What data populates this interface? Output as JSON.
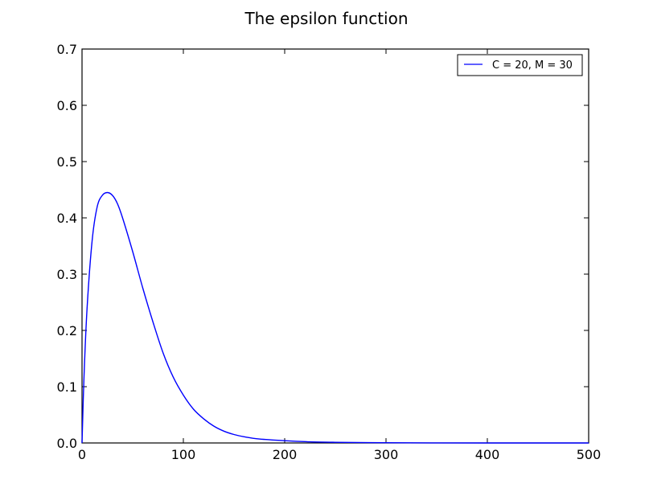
{
  "chart_data": {
    "type": "line",
    "title": "The epsilon function",
    "xlabel": "",
    "ylabel": "",
    "xlim": [
      0,
      500
    ],
    "ylim": [
      0,
      0.7
    ],
    "x_ticks": [
      0,
      100,
      200,
      300,
      400,
      500
    ],
    "y_ticks": [
      0.0,
      0.1,
      0.2,
      0.3,
      0.4,
      0.5,
      0.6,
      0.7
    ],
    "x_tick_labels": [
      "0",
      "100",
      "200",
      "300",
      "400",
      "500"
    ],
    "y_tick_labels": [
      "0.0",
      "0.1",
      "0.2",
      "0.3",
      "0.4",
      "0.5",
      "0.6",
      "0.7"
    ],
    "grid": false,
    "legend_position": "top-right",
    "series": [
      {
        "name": "C = 20, M = 30",
        "color": "#0000ff",
        "x": [
          0,
          2,
          5,
          10,
          15,
          20,
          25,
          30,
          35,
          40,
          50,
          60,
          70,
          80,
          90,
          100,
          110,
          120,
          130,
          140,
          150,
          160,
          175,
          200,
          225,
          250,
          300,
          350,
          400,
          450,
          500
        ],
        "y": [
          0.0,
          0.12,
          0.24,
          0.36,
          0.42,
          0.44,
          0.445,
          0.44,
          0.425,
          0.4,
          0.34,
          0.275,
          0.215,
          0.16,
          0.117,
          0.085,
          0.06,
          0.043,
          0.03,
          0.021,
          0.015,
          0.011,
          0.007,
          0.004,
          0.002,
          0.0012,
          0.0004,
          0.0001,
          0.0,
          0.0,
          0.0
        ]
      }
    ]
  }
}
